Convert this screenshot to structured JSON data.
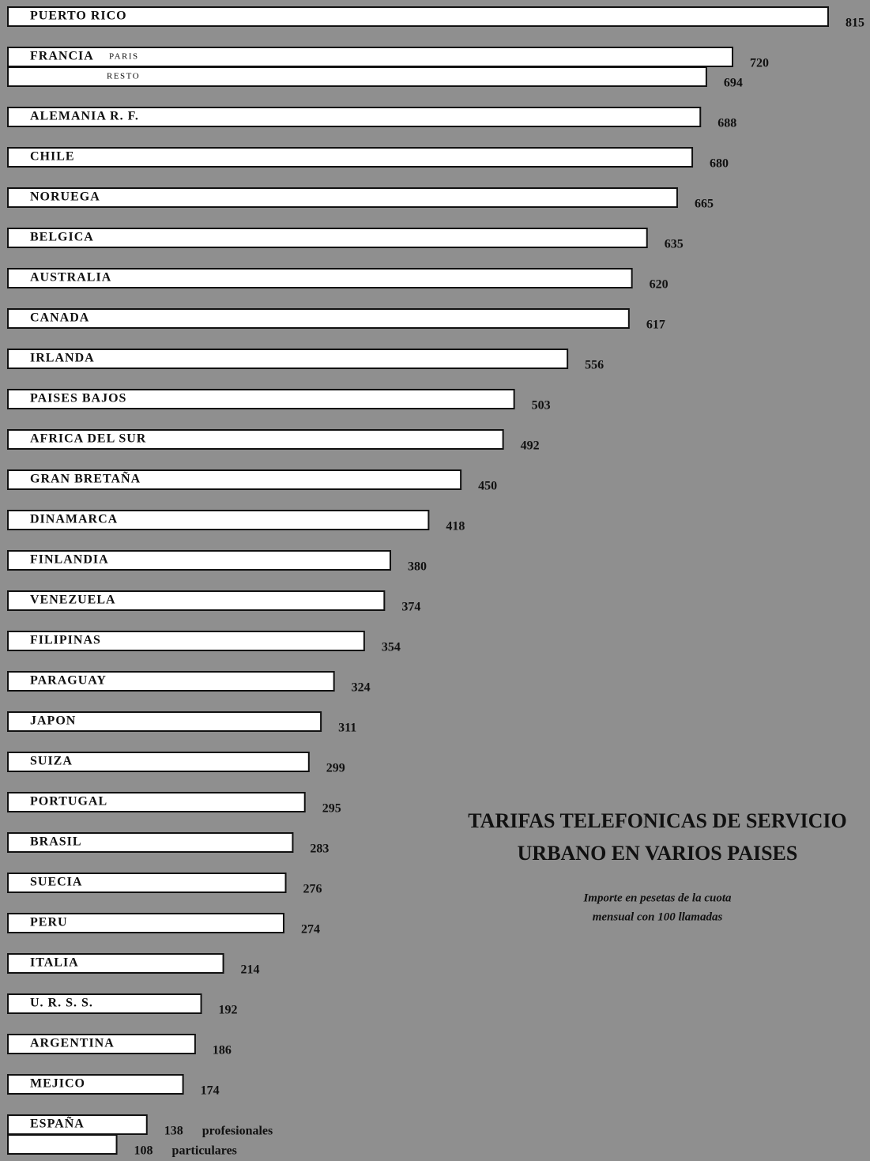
{
  "chart_data": {
    "type": "bar",
    "title": [
      "TARIFAS TELEFONICAS DE SERVICIO",
      "URBANO EN VARIOS PAISES"
    ],
    "subtitle": [
      "Importe en pesetas de la cuota",
      "mensual con 100 llamadas"
    ],
    "color": "#ffffff",
    "bars": [
      {
        "label": "PUERTO RICO",
        "value": 815
      },
      {
        "label": "FRANCIA",
        "sublabel": "PARIS",
        "value": 720
      },
      {
        "sublabel": "RESTO",
        "value": 694
      },
      {
        "label": "ALEMANIA R. F.",
        "value": 688
      },
      {
        "label": "CHILE",
        "value": 680
      },
      {
        "label": "NORUEGA",
        "value": 665
      },
      {
        "label": "BELGICA",
        "value": 635
      },
      {
        "label": "AUSTRALIA",
        "value": 620
      },
      {
        "label": "CANADA",
        "value": 617
      },
      {
        "label": "IRLANDA",
        "value": 556
      },
      {
        "label": "PAISES BAJOS",
        "value": 503
      },
      {
        "label": "AFRICA DEL SUR",
        "value": 492
      },
      {
        "label": "GRAN BRETAÑA",
        "value": 450
      },
      {
        "label": "DINAMARCA",
        "value": 418
      },
      {
        "label": "FINLANDIA",
        "value": 380
      },
      {
        "label": "VENEZUELA",
        "value": 374
      },
      {
        "label": "FILIPINAS",
        "value": 354
      },
      {
        "label": "PARAGUAY",
        "value": 324
      },
      {
        "label": "JAPON",
        "value": 311
      },
      {
        "label": "SUIZA",
        "value": 299
      },
      {
        "label": "PORTUGAL",
        "value": 295
      },
      {
        "label": "BRASIL",
        "value": 283
      },
      {
        "label": "SUECIA",
        "value": 276
      },
      {
        "label": "PERU",
        "value": 274
      },
      {
        "label": "ITALIA",
        "value": 214
      },
      {
        "label": "U. R. S. S.",
        "value": 192
      },
      {
        "label": "ARGENTINA",
        "value": 186
      },
      {
        "label": "MEJICO",
        "value": 174
      },
      {
        "label": "ESPAÑA",
        "value": 138,
        "note": "profesionales"
      },
      {
        "value": 108,
        "note": "particulares"
      }
    ]
  }
}
